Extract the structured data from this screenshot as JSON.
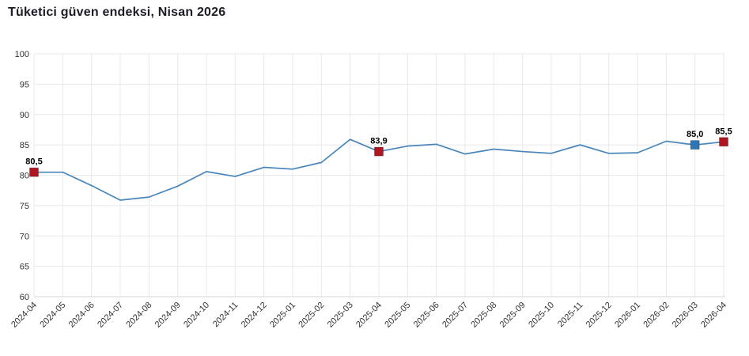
{
  "title": "Tüketici güven endeksi, Nisan 2026",
  "chart_data": {
    "type": "line",
    "title": "Tüketici güven endeksi, Nisan 2026",
    "categories": [
      "2024-04",
      "2024-05",
      "2024-06",
      "2024-07",
      "2024-08",
      "2024-09",
      "2024-10",
      "2024-11",
      "2024-12",
      "2025-01",
      "2025-02",
      "2025-03",
      "2025-04",
      "2025-05",
      "2025-06",
      "2025-07",
      "2025-08",
      "2025-09",
      "2025-10",
      "2025-11",
      "2025-12",
      "2026-01",
      "2026-02",
      "2026-03",
      "2026-04"
    ],
    "values": [
      80.5,
      80.5,
      78.3,
      75.9,
      76.4,
      78.2,
      80.6,
      79.8,
      81.3,
      81.0,
      82.1,
      85.9,
      83.9,
      84.8,
      85.1,
      83.5,
      84.3,
      83.9,
      83.6,
      85.0,
      83.6,
      83.7,
      85.6,
      85.0,
      85.5
    ],
    "xlabel": "",
    "ylabel": "",
    "ylim": [
      60,
      100
    ],
    "yticks": [
      60,
      65,
      70,
      75,
      80,
      85,
      90,
      95,
      100
    ],
    "grid": true,
    "legend": "none",
    "line_color": "#4a86ba",
    "grid_color": "#e8e8e8",
    "axis_line_color": "#d4d4d4",
    "tick_label_color": "#333333",
    "data_label_color": "#000000",
    "marked_points": [
      {
        "category": "2024-04",
        "value": 80.5,
        "label": "80,5",
        "color": "#b01622"
      },
      {
        "category": "2025-04",
        "value": 83.9,
        "label": "83,9",
        "color": "#b01622"
      },
      {
        "category": "2026-03",
        "value": 85.0,
        "label": "85,0",
        "color": "#2f76b5"
      },
      {
        "category": "2026-04",
        "value": 85.5,
        "label": "85,5",
        "color": "#b01622"
      }
    ]
  }
}
